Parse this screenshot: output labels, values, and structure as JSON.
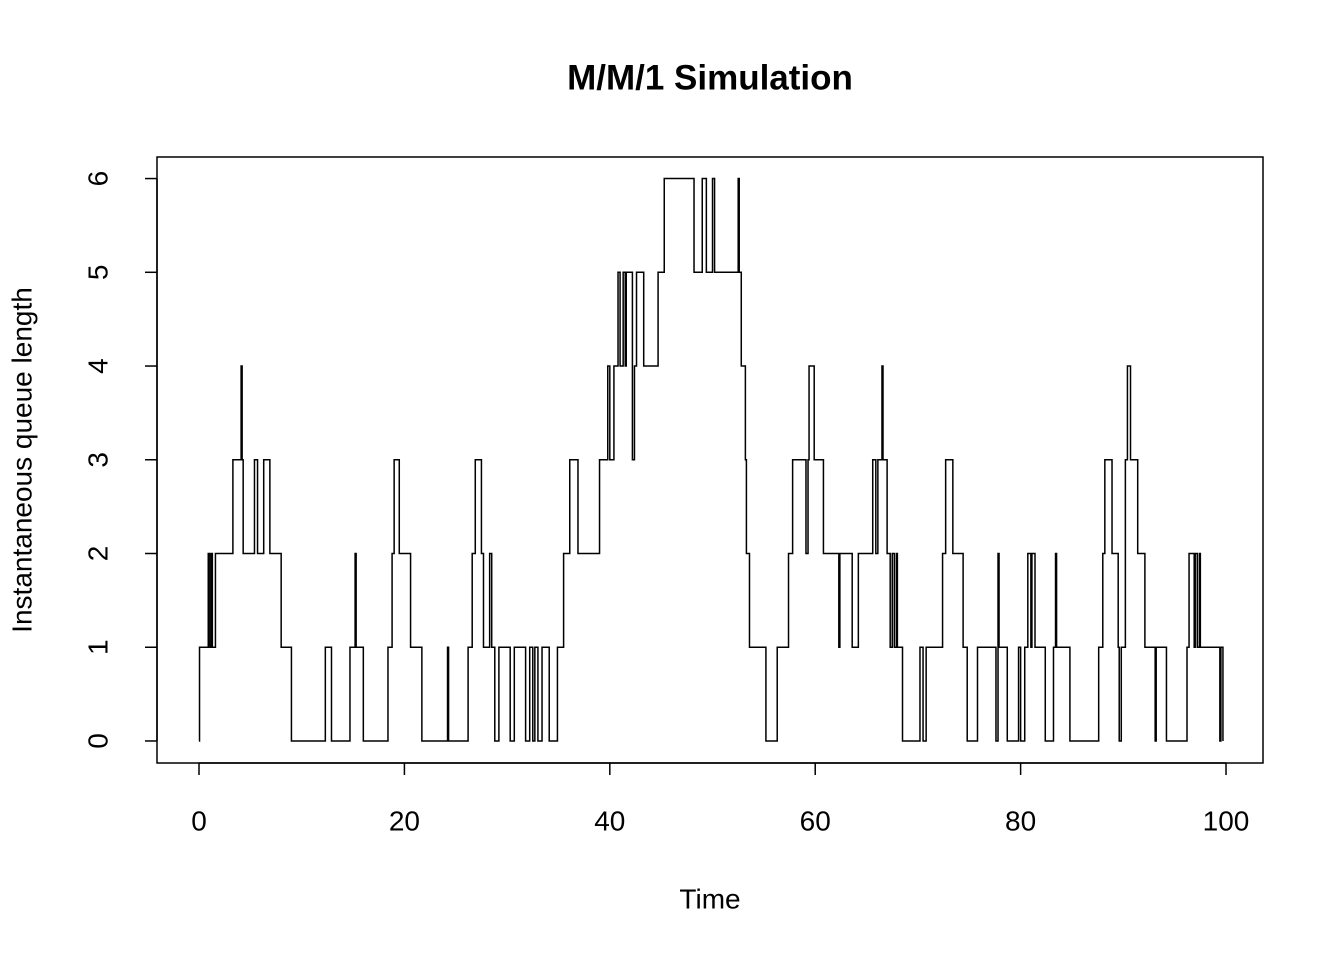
{
  "chart_data": {
    "type": "step",
    "title": "M/M/1 Simulation",
    "x_label": "Time",
    "y_label": "Instantaneous queue length",
    "color": "#000000",
    "xlim": [
      -4.09,
      103.6
    ],
    "ylim": [
      -0.235,
      6.23
    ],
    "xticks": [
      0,
      20,
      40,
      60,
      80,
      100
    ],
    "yticks": [
      0,
      1,
      2,
      3,
      4,
      5,
      6
    ],
    "x": [
      0,
      0.05,
      0.9,
      1.05,
      1.2,
      1.3,
      1.6,
      3.3,
      4.1,
      4.2,
      4.3,
      5.4,
      5.7,
      6.3,
      6.9,
      8.0,
      9.0,
      12.3,
      12.9,
      14.7,
      15.2,
      15.3,
      16.0,
      18.4,
      18.8,
      19.0,
      19.5,
      20.6,
      21.7,
      24.2,
      24.3,
      26.2,
      26.6,
      26.9,
      27.5,
      27.7,
      28.3,
      28.5,
      28.8,
      29.2,
      30.3,
      30.7,
      31.8,
      32.2,
      32.5,
      32.7,
      33.0,
      33.4,
      34.1,
      34.9,
      35.5,
      36.1,
      36.9,
      39.0,
      39.8,
      40.0,
      40.4,
      40.8,
      41.0,
      41.3,
      41.5,
      41.6,
      42.2,
      42.4,
      42.6,
      43.3,
      44.7,
      45.3,
      48.2,
      49.0,
      49.4,
      50.0,
      50.2,
      52.5,
      52.6,
      52.8,
      53.2,
      53.3,
      53.6,
      55.2,
      56.3,
      57.4,
      57.8,
      59.1,
      59.3,
      59.4,
      59.9,
      60.8,
      62.3,
      62.4,
      63.6,
      64.2,
      65.6,
      65.9,
      66.1,
      66.5,
      66.6,
      67.0,
      67.3,
      67.5,
      67.7,
      67.9,
      68.0,
      68.5,
      70.2,
      70.5,
      70.8,
      72.4,
      72.7,
      73.4,
      74.4,
      74.8,
      75.8,
      77.6,
      77.8,
      77.9,
      78.7,
      79.8,
      80.0,
      80.4,
      80.7,
      81.0,
      81.1,
      81.4,
      82.4,
      83.2,
      83.4,
      83.5,
      84.8,
      87.6,
      88.0,
      88.2,
      88.9,
      89.5,
      89.6,
      89.8,
      90.2,
      90.4,
      90.7,
      91.4,
      92.1,
      93.1,
      93.2,
      94.2,
      96.2,
      96.4,
      96.9,
      97.0,
      97.2,
      97.4,
      97.5,
      99.4,
      99.5,
      99.7
    ],
    "values": [
      0,
      1,
      2,
      1,
      2,
      1,
      2,
      3,
      4,
      3,
      2,
      3,
      2,
      3,
      2,
      1,
      0,
      1,
      0,
      1,
      2,
      1,
      0,
      1,
      2,
      3,
      2,
      1,
      0,
      1,
      0,
      1,
      2,
      3,
      2,
      1,
      2,
      1,
      0,
      1,
      0,
      1,
      0,
      1,
      0,
      1,
      0,
      1,
      0,
      1,
      2,
      3,
      2,
      3,
      4,
      3,
      4,
      5,
      4,
      5,
      4,
      5,
      3,
      4,
      5,
      4,
      5,
      6,
      5,
      6,
      5,
      6,
      5,
      6,
      5,
      4,
      3,
      2,
      1,
      0,
      1,
      2,
      3,
      2,
      3,
      4,
      3,
      2,
      1,
      2,
      1,
      2,
      3,
      2,
      3,
      4,
      3,
      2,
      1,
      2,
      1,
      2,
      1,
      0,
      1,
      0,
      1,
      2,
      3,
      2,
      1,
      0,
      1,
      0,
      2,
      1,
      0,
      1,
      0,
      1,
      2,
      1,
      2,
      1,
      0,
      1,
      2,
      1,
      0,
      1,
      2,
      3,
      2,
      1,
      0,
      1,
      3,
      4,
      3,
      2,
      1,
      0,
      1,
      0,
      1,
      2,
      1,
      2,
      1,
      2,
      1,
      0,
      1,
      0
    ]
  }
}
